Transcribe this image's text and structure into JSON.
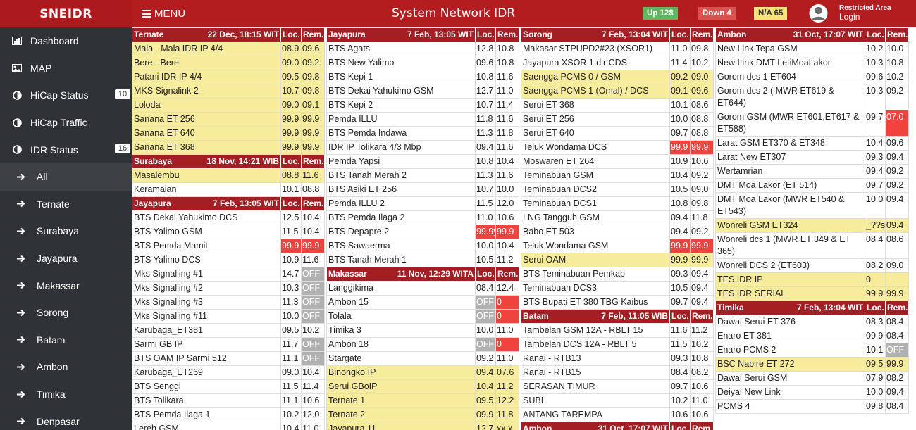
{
  "brand": "SNEIDR",
  "header": {
    "menu_label": "MENU",
    "title": "System Network IDR",
    "up": "Up 128",
    "down": "Down 4",
    "na": "N/A 65",
    "restricted": "Restricted Area",
    "login": "Login"
  },
  "colors": {
    "header": "#b31d20",
    "sidebar": "#2f3236",
    "up": "#5cb85c",
    "down": "#d9534f",
    "na": "#f7e37a",
    "highlight": "#f6ec9c",
    "alarm": "#f0433d",
    "off": "#b1b1b1"
  },
  "sidebar": {
    "items": [
      {
        "label": "Dashboard",
        "icon": "dashboard-icon"
      },
      {
        "label": "MAP",
        "icon": "image-icon"
      },
      {
        "label": "HiCap Status",
        "icon": "half-circle-icon",
        "badge": "10"
      },
      {
        "label": "HiCap Traffic",
        "icon": "half-circle-icon"
      },
      {
        "label": "IDR Status",
        "icon": "half-circle-icon",
        "badge": "16"
      },
      {
        "label": "All",
        "icon": "arrow-right-icon",
        "sub": true,
        "active": true
      },
      {
        "label": "Ternate",
        "icon": "arrow-right-icon",
        "sub": true
      },
      {
        "label": "Surabaya",
        "icon": "arrow-right-icon",
        "sub": true
      },
      {
        "label": "Jayapura",
        "icon": "arrow-right-icon",
        "sub": true
      },
      {
        "label": "Makassar",
        "icon": "arrow-right-icon",
        "sub": true
      },
      {
        "label": "Sorong",
        "icon": "arrow-right-icon",
        "sub": true
      },
      {
        "label": "Batam",
        "icon": "arrow-right-icon",
        "sub": true
      },
      {
        "label": "Ambon",
        "icon": "arrow-right-icon",
        "sub": true
      },
      {
        "label": "Timika",
        "icon": "arrow-right-icon",
        "sub": true
      },
      {
        "label": "Denpasar",
        "icon": "arrow-right-icon",
        "sub": true
      }
    ]
  },
  "columns": [
    {
      "sections": [
        {
          "region": "Ternate",
          "time": "22 Dec, 18:15 WIT",
          "loc_label": "Loc.",
          "rem_label": "Rem.",
          "rows": [
            {
              "name": "Mala - Mala IDR IP 4/4",
              "loc": "08.9",
              "rem": "09.6",
              "hl": true
            },
            {
              "name": "Bere - Bere",
              "loc": "09.0",
              "rem": "09.2",
              "hl": true
            },
            {
              "name": "Patani IDR IP 4/4",
              "loc": "09.5",
              "rem": "09.8",
              "hl": true
            },
            {
              "name": "MKS Signalink 2",
              "loc": "10.7",
              "rem": "09.8",
              "hl": true
            },
            {
              "name": "Loloda",
              "loc": "09.0",
              "rem": "09.1",
              "hl": true
            },
            {
              "name": "Sanana ET 256",
              "loc": "99.9",
              "rem": "99.9",
              "hl": true
            },
            {
              "name": "Sanana ET 640",
              "loc": "99.9",
              "rem": "99.9",
              "hl": true
            },
            {
              "name": "Sanana ET 368",
              "loc": "99.9",
              "rem": "99.9",
              "hl": true
            }
          ]
        },
        {
          "region": "Surabaya",
          "time": "18 Nov, 14:21 WIB",
          "loc_label": "Loc.",
          "rem_label": "Rem.",
          "rows": [
            {
              "name": "Masalembu",
              "loc": "08.8",
              "rem": "11.6",
              "hl": true
            },
            {
              "name": "Keramaian",
              "loc": "10.1",
              "rem": "08.8"
            }
          ]
        },
        {
          "region": "Jayapura",
          "time": "7 Feb, 13:05 WIT",
          "loc_label": "Loc.",
          "rem_label": "Rem.",
          "rows": [
            {
              "name": "BTS Dekai Yahukimo DCS",
              "loc": "12.5",
              "rem": "10.4"
            },
            {
              "name": "BTS Yalimo GSM",
              "loc": "11.5",
              "rem": "10.4"
            },
            {
              "name": "BTS Pemda Mamit",
              "loc": "99.9",
              "rem": "99.9",
              "loc_st": "red",
              "rem_st": "red"
            },
            {
              "name": "BTS Yalimo DCS",
              "loc": "10.9",
              "rem": "11.6"
            },
            {
              "name": "Mks Signalling #1",
              "loc": "14.7",
              "rem": "OFF",
              "rem_st": "off"
            },
            {
              "name": "Mks Signalling #2",
              "loc": "10.3",
              "rem": "OFF",
              "rem_st": "off"
            },
            {
              "name": "Mks Signalling #3",
              "loc": "11.3",
              "rem": "OFF",
              "rem_st": "off"
            },
            {
              "name": "Mks Signalling #11",
              "loc": "10.0",
              "rem": "OFF",
              "rem_st": "off"
            },
            {
              "name": "Karubaga_ET381",
              "loc": "09.5",
              "rem": "10.2"
            },
            {
              "name": "Sarmi GB IP",
              "loc": "11.7",
              "rem": "OFF",
              "rem_st": "off"
            },
            {
              "name": "BTS OAM IP Sarmi 512",
              "loc": "11.1",
              "rem": "OFF",
              "rem_st": "off"
            },
            {
              "name": "Karubaga_ET269",
              "loc": "09.0",
              "rem": "10.4"
            },
            {
              "name": "BTS Senggi",
              "loc": "11.5",
              "rem": "11.4"
            },
            {
              "name": "BTS Tolikara",
              "loc": "11.1",
              "rem": "10.6"
            },
            {
              "name": "BTS Pemda Ilaga 1",
              "loc": "10.2",
              "rem": "12.0"
            },
            {
              "name": "Lereh GSM",
              "loc": "10.4",
              "rem": "11.0"
            }
          ]
        }
      ]
    },
    {
      "sections": [
        {
          "region": "Jayapura",
          "time": "7 Feb, 13:05 WIT",
          "loc_label": "Loc.",
          "rem_label": "Rem.",
          "rows": [
            {
              "name": "BTS Agats",
              "loc": "12.8",
              "rem": "10.8"
            },
            {
              "name": "BTS New Yalimo",
              "loc": "09.6",
              "rem": "10.8"
            },
            {
              "name": "BTS Kepi 1",
              "loc": "10.8",
              "rem": "11.6"
            },
            {
              "name": "BTS Dekai Yahukimo GSM",
              "loc": "12.7",
              "rem": "11.0"
            },
            {
              "name": "BTS Kepi 2",
              "loc": "10.7",
              "rem": "11.4"
            },
            {
              "name": "Pemda ILLU",
              "loc": "11.8",
              "rem": "11.6"
            },
            {
              "name": "BTS Pemda Indawa",
              "loc": "11.3",
              "rem": "11.8"
            },
            {
              "name": "IDR IP Tolikara 4/3 Mbp",
              "loc": "09.4",
              "rem": "11.6"
            },
            {
              "name": "Pemda Yapsi",
              "loc": "10.8",
              "rem": "10.4"
            },
            {
              "name": "BTS Tanah Merah 2",
              "loc": "11.3",
              "rem": "11.6"
            },
            {
              "name": "BTS Asiki ET 256",
              "loc": "10.7",
              "rem": "10.0"
            },
            {
              "name": "Pemda ILLU 2",
              "loc": "11.5",
              "rem": "12.0"
            },
            {
              "name": "BTS Pemda Ilaga 2",
              "loc": "11.0",
              "rem": "10.6"
            },
            {
              "name": "BTS Depapre 2",
              "loc": "99.9ÿ",
              "rem": "99.9",
              "loc_st": "red",
              "rem_st": "red"
            },
            {
              "name": "BTS Sawaerma",
              "loc": "10.0",
              "rem": "10.4"
            },
            {
              "name": "BTS Tanah Merah 1",
              "loc": "10.5",
              "rem": "11.2"
            }
          ]
        },
        {
          "region": "Makassar",
          "time": "11 Nov, 12:29 WITA",
          "loc_label": "Loc.",
          "rem_label": "Rem.",
          "rows": [
            {
              "name": "Langgikima",
              "loc": "08.4",
              "rem": "12.4"
            },
            {
              "name": "Ambon 15",
              "loc": "OFF",
              "rem": "0",
              "loc_st": "off",
              "rem_st": "red"
            },
            {
              "name": "Tolala",
              "loc": "OFF",
              "rem": "0",
              "loc_st": "off",
              "rem_st": "red"
            },
            {
              "name": "Timika 3",
              "loc": "10.0",
              "rem": "11.0"
            },
            {
              "name": "Ambon 18",
              "loc": "OFF",
              "rem": "0",
              "loc_st": "off",
              "rem_st": "red"
            },
            {
              "name": "Stargate",
              "loc": "09.2",
              "rem": "11.0"
            },
            {
              "name": "Binongko IP",
              "loc": "09.4",
              "rem": "07.6",
              "hl": true
            },
            {
              "name": "Serui GBoIP",
              "loc": "10.4",
              "rem": "11.2",
              "hl": true
            },
            {
              "name": "Ternate 1",
              "loc": "09.5",
              "rem": "12.2",
              "hl": true
            },
            {
              "name": "Ternate 2",
              "loc": "09.9",
              "rem": "11.8",
              "hl": true
            },
            {
              "name": "Jayapura 11",
              "loc": "12.7",
              "rem": "xx.x",
              "hl": true
            }
          ]
        }
      ]
    },
    {
      "sections": [
        {
          "region": "Sorong",
          "time": "7 Feb, 13:04 WIT",
          "loc_label": "Loc.",
          "rem_label": "Rem.",
          "rows": [
            {
              "name": "Makasar STPUPD2#23 (XSOR1)",
              "loc": "11.0",
              "rem": "09.8"
            },
            {
              "name": "Jayapura XSOR 1 dir CDS",
              "loc": "11.4",
              "rem": "10.2"
            },
            {
              "name": "Saengga PCMS 0 / GSM",
              "loc": "09.2",
              "rem": "09.0",
              "hl": true
            },
            {
              "name": "Saengga PCMS 1 (Omal) / DCS",
              "loc": "09.1",
              "rem": "09.6",
              "hl": true
            },
            {
              "name": "Serui ET 368",
              "loc": "10.1",
              "rem": "08.6"
            },
            {
              "name": "Serui ET 256",
              "loc": "10.0",
              "rem": "08.8"
            },
            {
              "name": "Serui ET 640",
              "loc": "09.7",
              "rem": "08.8"
            },
            {
              "name": "Teluk Wondama DCS",
              "loc": "99.9",
              "rem": "99.9",
              "loc_st": "red",
              "rem_st": "red"
            },
            {
              "name": "Moswaren ET 264",
              "loc": "10.9",
              "rem": "10.6"
            },
            {
              "name": "Teminabuan GSM",
              "loc": "10.4",
              "rem": "09.2"
            },
            {
              "name": "Teminabuan DCS2",
              "loc": "10.5",
              "rem": "09.0"
            },
            {
              "name": "Teminabuan DCS1",
              "loc": "10.8",
              "rem": "09.8"
            },
            {
              "name": "LNG Tangguh GSM",
              "loc": "09.4",
              "rem": "11.8"
            },
            {
              "name": "Babo ET 503",
              "loc": "09.4",
              "rem": "09.2"
            },
            {
              "name": "Teluk Wondama GSM",
              "loc": "99.9",
              "rem": "99.9",
              "loc_st": "red",
              "rem_st": "red"
            },
            {
              "name": "Serui OAM",
              "loc": "99.9",
              "rem": "99.9",
              "hl": true
            },
            {
              "name": "BTS Teminabuan Pemkab",
              "loc": "09.3",
              "rem": "09.4"
            },
            {
              "name": "Teminabuan DCS3",
              "loc": "10.5",
              "rem": "09.4"
            },
            {
              "name": "BTS Bupati ET 380 TBG Kaibus",
              "loc": "09.7",
              "rem": "09.4"
            }
          ]
        },
        {
          "region": "Batam",
          "time": "7 Feb, 11:05 WIB",
          "loc_label": "Loc.",
          "rem_label": "Rem.",
          "rows": [
            {
              "name": "Tambelan GSM 12A - RBLT 15",
              "loc": "11.6",
              "rem": "11.2"
            },
            {
              "name": "Tambelan DCS 12A - RBLT 5",
              "loc": "11.5",
              "rem": "10.2"
            },
            {
              "name": "Ranai - RTB13",
              "loc": "09.3",
              "rem": "10.8"
            },
            {
              "name": "Ranai - RTB15",
              "loc": "08.4",
              "rem": "08.2"
            },
            {
              "name": "SERASAN TIMUR",
              "loc": "09.7",
              "rem": "10.6"
            },
            {
              "name": "SUBI",
              "loc": "10.2",
              "rem": "11.0"
            },
            {
              "name": "ANTANG TAREMPA",
              "loc": "10.6",
              "rem": "10.6"
            }
          ]
        },
        {
          "region": "Ambon",
          "time": "31 Oct, 17:07 WIT",
          "loc_label": "Loc.",
          "rem_label": "Rem.",
          "rows": []
        }
      ]
    },
    {
      "sections": [
        {
          "region": "Ambon",
          "time": "31 Oct, 17:07 WIT",
          "loc_label": "Loc.",
          "rem_label": "Rem.",
          "rows": [
            {
              "name": "New Link Tepa GSM",
              "loc": "10.2",
              "rem": "10.0"
            },
            {
              "name": "New Link DMT LetiMoaLakor",
              "loc": "10.3",
              "rem": "10.8"
            },
            {
              "name": "Gorom dcs 1 ET604",
              "loc": "09.6",
              "rem": "10.2"
            },
            {
              "name": "Gorom dcs 2 ( MWR ET619 & ET644)",
              "loc": "10.3",
              "rem": "09.2"
            },
            {
              "name": "Gorom GSM (MWR ET601,ET617 & ET588)",
              "loc": "09.7",
              "rem": "07.0",
              "rem_st": "red"
            },
            {
              "name": "Larat GSM ET370 & ET348",
              "loc": "10.4",
              "rem": "09.6"
            },
            {
              "name": "Larat New ET307",
              "loc": "09.3",
              "rem": "09.4"
            },
            {
              "name": "Wertamrian",
              "loc": "09.4",
              "rem": "09.2"
            },
            {
              "name": "DMT Moa Lakor (ET 514)",
              "loc": "09.7",
              "rem": "09.2"
            },
            {
              "name": "DMT Moa Lakor (MWR ET540 & ET543)",
              "loc": "10.0",
              "rem": "09.4"
            },
            {
              "name": "Wonreli GSM ET324",
              "loc": "_??s",
              "rem": "09.4",
              "hl": true
            },
            {
              "name": "Wonreli dcs 1 (MWR ET 349 & ET 365)",
              "loc": "08.4",
              "rem": "08.6"
            },
            {
              "name": "Wonreli DCS 2 (ET603)",
              "loc": "08.2",
              "rem": "09.0"
            },
            {
              "name": "TES IDR IP",
              "loc": "0",
              "rem": "",
              "hl": true
            },
            {
              "name": "TES IDR SERIAL",
              "loc": "99.9",
              "rem": "99.9",
              "hl": true
            }
          ]
        },
        {
          "region": "Timika",
          "time": "7 Feb, 13:04 WIT",
          "loc_label": "Loc.",
          "rem_label": "Rem.",
          "rows": [
            {
              "name": "Dawai Serui ET 376",
              "loc": "08.3",
              "rem": "08.4"
            },
            {
              "name": "Enaro ET 381",
              "loc": "09.9",
              "rem": "08.4"
            },
            {
              "name": "Enaro PCMS 2",
              "loc": "10.1",
              "rem": "OFF",
              "rem_st": "off"
            },
            {
              "name": "BSC Nabire ET 272",
              "loc": "09.5",
              "rem": "99.9",
              "hl": true
            },
            {
              "name": "Dawai Serui GSM",
              "loc": "07.9",
              "rem": "08.2"
            },
            {
              "name": "Deiyai New Link",
              "loc": "10.0",
              "rem": "09.4"
            },
            {
              "name": "PCMS 4",
              "loc": "09.8",
              "rem": "08.4"
            }
          ]
        }
      ]
    }
  ]
}
